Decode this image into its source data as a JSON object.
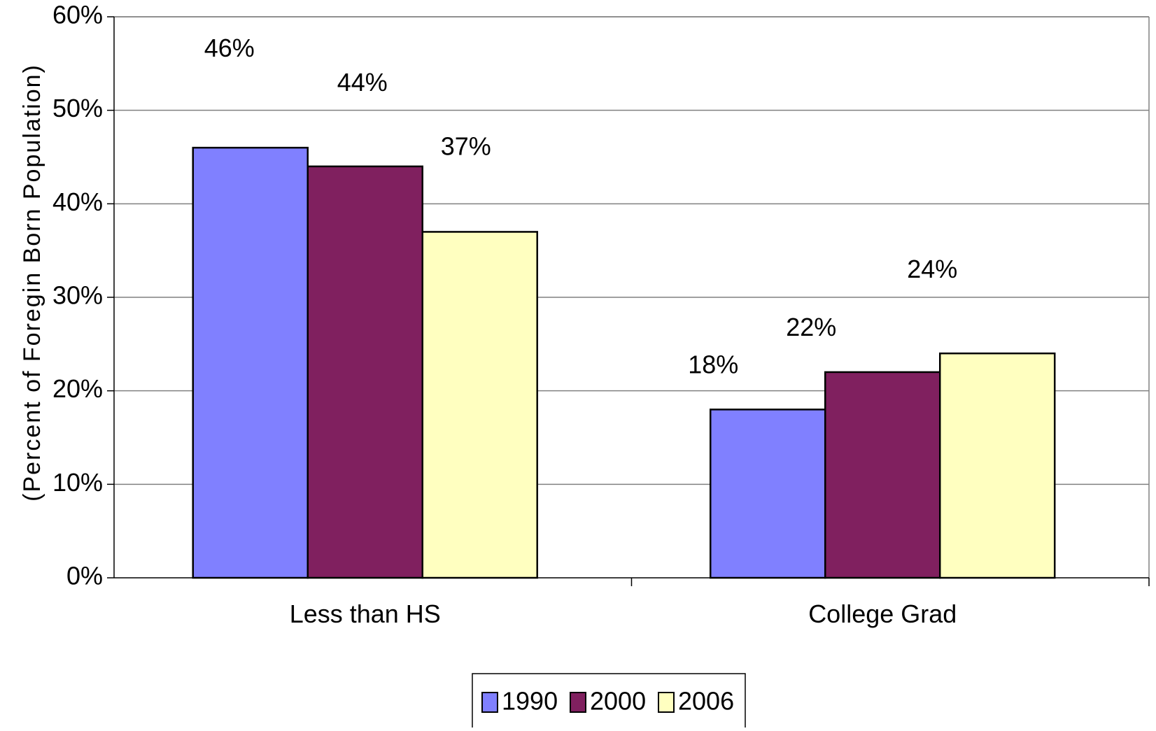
{
  "chart_data": {
    "type": "bar",
    "categories": [
      "Less than HS",
      "College Grad"
    ],
    "series": [
      {
        "name": "1990",
        "values": [
          46,
          18
        ],
        "labels": [
          "46%",
          "18%"
        ],
        "color": "#8080FF"
      },
      {
        "name": "2000",
        "values": [
          44,
          22
        ],
        "labels": [
          "44%",
          "22%"
        ],
        "color": "#80205F"
      },
      {
        "name": "2006",
        "values": [
          37,
          24
        ],
        "labels": [
          "37%",
          "24%"
        ],
        "color": "#FFFFC0"
      }
    ],
    "ylabel": "(Percent of Foregin Born Population)",
    "xlabel": "",
    "ylim": [
      0,
      60
    ],
    "yticks": [
      "0%",
      "10%",
      "20%",
      "30%",
      "40%",
      "50%",
      "60%"
    ],
    "grid": true,
    "legend_position": "bottom"
  }
}
